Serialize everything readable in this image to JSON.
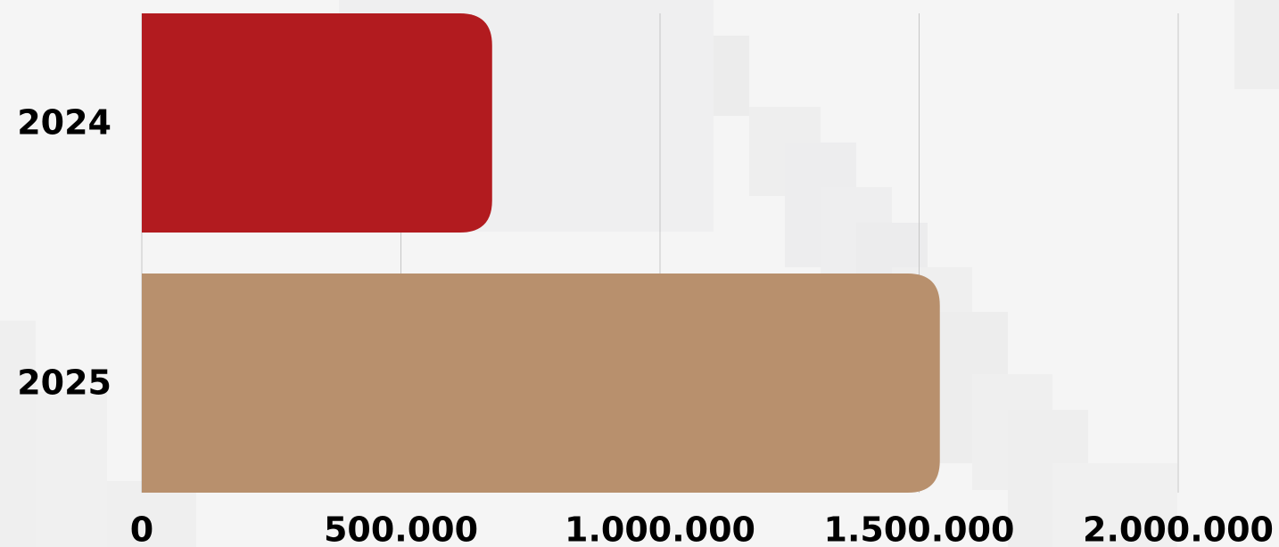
{
  "chart_data": {
    "type": "bar",
    "orientation": "horizontal",
    "categories": [
      "2024",
      "2025"
    ],
    "values": [
      676000,
      1540000
    ],
    "colors": [
      "#b21b1f",
      "#b8906d"
    ],
    "xlim": [
      0,
      2000000
    ],
    "xticks": [
      {
        "value": 0,
        "label": "0"
      },
      {
        "value": 500000,
        "label": "500.000"
      },
      {
        "value": 1000000,
        "label": "1.000.000"
      },
      {
        "value": 1500000,
        "label": "1.500.000"
      },
      {
        "value": 2000000,
        "label": "2.000.000"
      }
    ],
    "grid": true,
    "gridColor": "#c6c6c6",
    "title": "",
    "xlabel": "",
    "ylabel": ""
  }
}
